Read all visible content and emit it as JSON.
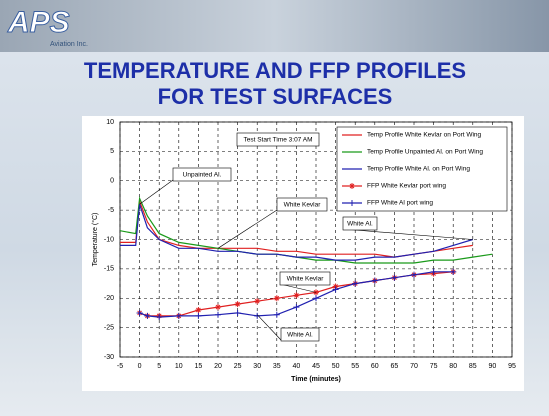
{
  "header": {
    "logo": "APS",
    "company": "Aviation Inc."
  },
  "chart_data": {
    "type": "line",
    "title": "TEMPERATURE AND FFP PROFILES FOR TEST SURFACES",
    "x_label": "Time (minutes)",
    "y_label": "Temperature (°C)",
    "annotations": [
      "Test Start Time 3:07 AM",
      "Unpainted Al.",
      "White Kevlar",
      "White Al.",
      "White Kevlar",
      "White Al."
    ],
    "x": [
      -5,
      -1,
      0,
      2,
      5,
      10,
      15,
      20,
      25,
      30,
      35,
      40,
      45,
      50,
      55,
      60,
      65,
      70,
      75,
      80,
      85,
      90
    ],
    "series": [
      {
        "name": "Temp Profile White Kevlar on Port Wing",
        "color": "#e02020",
        "values": [
          -10.5,
          -10.5,
          -3.5,
          -7,
          -10,
          -11,
          -11.5,
          -11.5,
          -11.5,
          -11.5,
          -12,
          -12,
          -12.5,
          -12.5,
          -12.5,
          -12.5,
          -13,
          -12.5,
          -12,
          -11.5,
          -11,
          null
        ]
      },
      {
        "name": "Temp Profile Unpainted Al. on Port Wing",
        "color": "#1a9a1a",
        "values": [
          -8.5,
          -9,
          -3,
          -6,
          -9,
          -10.5,
          -11,
          -11.5,
          -12,
          -12.5,
          -12.5,
          -13,
          -13.5,
          -13.5,
          -14,
          -14,
          -14,
          -14,
          -13.5,
          -13.5,
          -13,
          -12.5
        ]
      },
      {
        "name": "Temp Profile White Al. on Port Wing",
        "color": "#2020b0",
        "values": [
          -11,
          -11,
          -4,
          -8,
          -10,
          -11.5,
          -11.5,
          -12,
          -12,
          -12.5,
          -12.5,
          -13,
          -13,
          -13.5,
          -13.5,
          -13,
          -13,
          -12.5,
          -12,
          -11,
          -10,
          null
        ]
      },
      {
        "name": "FFP White Kevlar port wing",
        "color": "#e02020",
        "marker": "star",
        "values": [
          null,
          null,
          -22.5,
          -23,
          -23,
          -23,
          -22,
          -21.5,
          -21,
          -20.5,
          -20,
          -19.5,
          -19,
          -18,
          -17.5,
          -17,
          -16.5,
          -16,
          -15.8,
          -15.5,
          null,
          null
        ]
      },
      {
        "name": "FFP White Al port wing",
        "color": "#2020b0",
        "marker": "plus",
        "values": [
          null,
          null,
          -22.5,
          -23,
          -23.2,
          -23,
          -23,
          -22.8,
          -22.5,
          -23,
          -22.8,
          -21.5,
          -20,
          -18.5,
          -17.5,
          -17,
          -16.5,
          -16,
          -15.5,
          -15.5,
          null,
          null
        ]
      }
    ],
    "xlim": [
      -5,
      95
    ],
    "ylim": [
      -30,
      10
    ],
    "xticks": [
      -5,
      0,
      5,
      10,
      15,
      20,
      25,
      30,
      35,
      40,
      45,
      50,
      55,
      60,
      65,
      70,
      75,
      80,
      85,
      90,
      95
    ],
    "yticks": [
      -30,
      -25,
      -20,
      -15,
      -10,
      -5,
      0,
      5,
      10
    ],
    "grid": true
  }
}
